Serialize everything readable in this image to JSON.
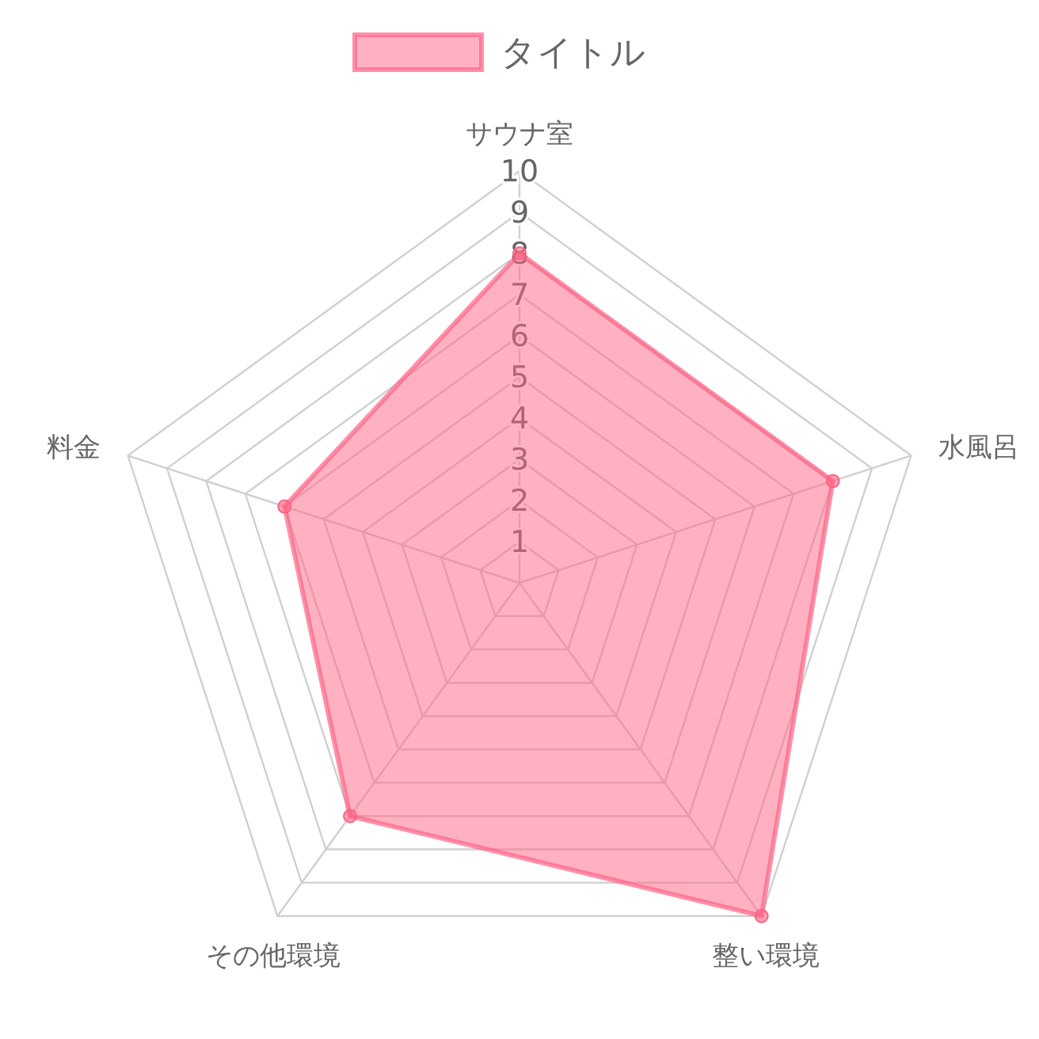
{
  "chart_data": {
    "type": "radar",
    "categories": [
      "サウナ室",
      "水風呂",
      "整い環境",
      "その他環境",
      "料金"
    ],
    "series": [
      {
        "name": "タイトル",
        "color": "#ff6384",
        "values": [
          8,
          8,
          10,
          7,
          6
        ]
      }
    ],
    "ylim": [
      0,
      10
    ],
    "yticks": [
      1,
      2,
      3,
      4,
      5,
      6,
      7,
      8,
      9,
      10
    ],
    "grid": true,
    "legend": "top",
    "marker": "circle"
  }
}
